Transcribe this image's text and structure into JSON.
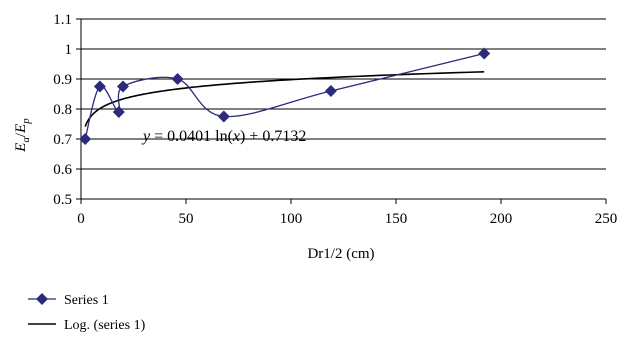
{
  "chart_data": {
    "type": "scatter",
    "title": "",
    "xlabel": "Dr1/2 (cm)",
    "ylabel": {
      "base": "E",
      "sub_a": "a",
      "slash": "/",
      "base2": "E",
      "sub_p": "p"
    },
    "xlim": [
      0,
      250
    ],
    "ylim": [
      0.5,
      1.1
    ],
    "xticks": [
      "0",
      "50",
      "100",
      "150",
      "200",
      "250"
    ],
    "yticks": [
      "0.5",
      "0.6",
      "0.7",
      "0.8",
      "0.9",
      "1",
      "1.1"
    ],
    "grid": "horizontal",
    "series": [
      {
        "name": "Series 1",
        "color": "#2b2b7a",
        "marker": "diamond",
        "line": "smooth",
        "x": [
          2,
          9,
          18,
          20,
          46,
          68,
          119,
          192
        ],
        "y": [
          0.7,
          0.875,
          0.79,
          0.875,
          0.9,
          0.775,
          0.86,
          0.985
        ]
      },
      {
        "name": "Log. (series 1)",
        "color": "#000000",
        "type": "logarithmic-trendline",
        "a": 0.0401,
        "b": 0.7132,
        "x_range": [
          2,
          192
        ]
      }
    ],
    "annotation": {
      "prefix": "y",
      "equals": " = 0.0401 ln(",
      "var": "x",
      "suffix": ") + 0.7132"
    },
    "legend": {
      "placement": "bottom-left",
      "entries": [
        "Series 1",
        "Log. (series 1)"
      ]
    }
  }
}
